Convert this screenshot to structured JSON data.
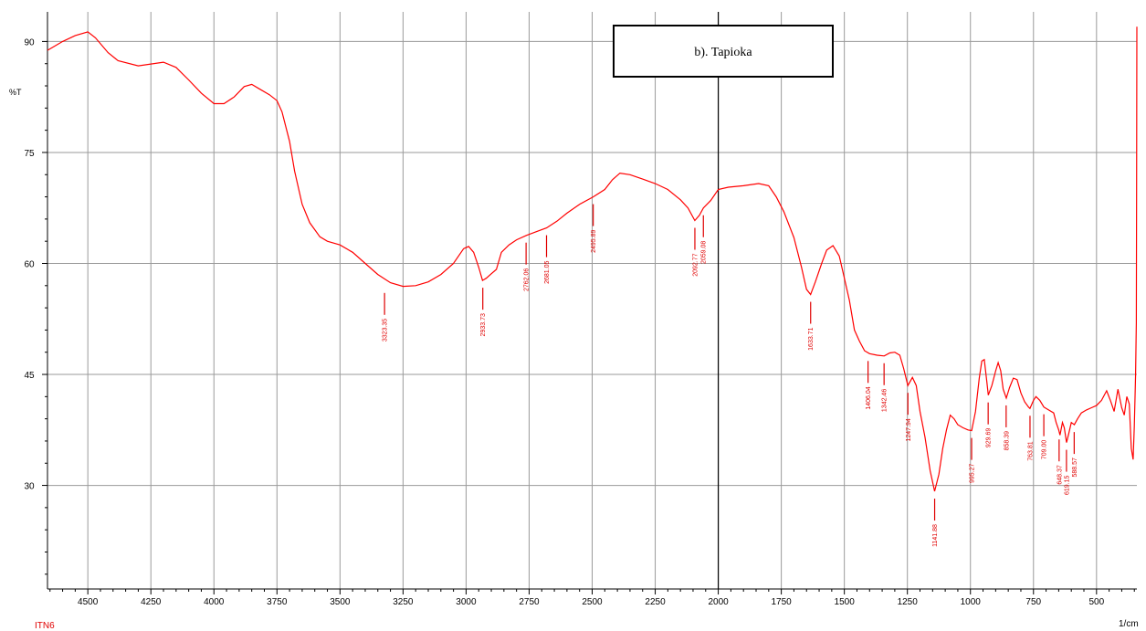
{
  "chart_data": {
    "type": "line",
    "title": "",
    "legend_box": "b). Tapioka",
    "ylabel": "%T",
    "xlabel": "1/cm",
    "sample_label": "ITN6",
    "x_reversed": true,
    "xlim": [
      4660,
      340
    ],
    "ylim": [
      16,
      94
    ],
    "x_ticks": [
      4500,
      4250,
      4000,
      3750,
      3500,
      3250,
      3000,
      2750,
      2500,
      2250,
      2000,
      1750,
      1500,
      1250,
      1000,
      750,
      500
    ],
    "y_ticks": [
      30,
      45,
      60,
      75,
      90
    ],
    "grid": true,
    "series": [
      {
        "color": "#ff0000",
        "points": [
          [
            4660,
            88.8
          ],
          [
            4600,
            90.0
          ],
          [
            4550,
            90.8
          ],
          [
            4500,
            91.3
          ],
          [
            4470,
            90.5
          ],
          [
            4420,
            88.5
          ],
          [
            4380,
            87.4
          ],
          [
            4300,
            86.7
          ],
          [
            4200,
            87.2
          ],
          [
            4150,
            86.5
          ],
          [
            4100,
            84.8
          ],
          [
            4050,
            83.0
          ],
          [
            4000,
            81.6
          ],
          [
            3960,
            81.6
          ],
          [
            3920,
            82.5
          ],
          [
            3880,
            83.9
          ],
          [
            3850,
            84.2
          ],
          [
            3820,
            83.6
          ],
          [
            3780,
            82.8
          ],
          [
            3750,
            82.0
          ],
          [
            3730,
            80.5
          ],
          [
            3700,
            76.5
          ],
          [
            3680,
            72.5
          ],
          [
            3650,
            68.0
          ],
          [
            3620,
            65.5
          ],
          [
            3580,
            63.6
          ],
          [
            3550,
            63.0
          ],
          [
            3500,
            62.5
          ],
          [
            3450,
            61.5
          ],
          [
            3400,
            60.0
          ],
          [
            3350,
            58.5
          ],
          [
            3300,
            57.4
          ],
          [
            3250,
            56.9
          ],
          [
            3200,
            57.0
          ],
          [
            3150,
            57.5
          ],
          [
            3100,
            58.5
          ],
          [
            3050,
            60.0
          ],
          [
            3010,
            62.0
          ],
          [
            2990,
            62.3
          ],
          [
            2970,
            61.5
          ],
          [
            2950,
            59.5
          ],
          [
            2935,
            57.7
          ],
          [
            2920,
            58.0
          ],
          [
            2900,
            58.6
          ],
          [
            2880,
            59.2
          ],
          [
            2860,
            61.5
          ],
          [
            2830,
            62.5
          ],
          [
            2800,
            63.2
          ],
          [
            2760,
            63.8
          ],
          [
            2720,
            64.3
          ],
          [
            2681,
            64.8
          ],
          [
            2640,
            65.7
          ],
          [
            2600,
            66.8
          ],
          [
            2550,
            68.0
          ],
          [
            2496,
            69.0
          ],
          [
            2450,
            70.0
          ],
          [
            2420,
            71.3
          ],
          [
            2390,
            72.2
          ],
          [
            2350,
            72.0
          ],
          [
            2300,
            71.4
          ],
          [
            2250,
            70.8
          ],
          [
            2200,
            70.0
          ],
          [
            2150,
            68.6
          ],
          [
            2120,
            67.5
          ],
          [
            2093,
            65.8
          ],
          [
            2075,
            66.5
          ],
          [
            2059,
            67.5
          ],
          [
            2030,
            68.5
          ],
          [
            2000,
            70.0
          ],
          [
            1960,
            70.3
          ],
          [
            1900,
            70.5
          ],
          [
            1840,
            70.8
          ],
          [
            1800,
            70.5
          ],
          [
            1770,
            69.0
          ],
          [
            1740,
            67.0
          ],
          [
            1700,
            63.5
          ],
          [
            1670,
            59.5
          ],
          [
            1650,
            56.5
          ],
          [
            1634,
            55.8
          ],
          [
            1615,
            57.5
          ],
          [
            1590,
            60.0
          ],
          [
            1570,
            61.8
          ],
          [
            1545,
            62.4
          ],
          [
            1520,
            61.0
          ],
          [
            1500,
            58.0
          ],
          [
            1480,
            55.0
          ],
          [
            1460,
            51.0
          ],
          [
            1440,
            49.5
          ],
          [
            1420,
            48.2
          ],
          [
            1400,
            47.8
          ],
          [
            1370,
            47.6
          ],
          [
            1342,
            47.5
          ],
          [
            1320,
            47.9
          ],
          [
            1300,
            48.0
          ],
          [
            1280,
            47.6
          ],
          [
            1265,
            45.8
          ],
          [
            1248,
            43.5
          ],
          [
            1230,
            44.6
          ],
          [
            1215,
            43.5
          ],
          [
            1200,
            40.0
          ],
          [
            1180,
            36.5
          ],
          [
            1160,
            32.0
          ],
          [
            1142,
            29.2
          ],
          [
            1125,
            31.5
          ],
          [
            1110,
            35.0
          ],
          [
            1095,
            37.5
          ],
          [
            1080,
            39.5
          ],
          [
            1065,
            39.0
          ],
          [
            1050,
            38.2
          ],
          [
            1030,
            37.8
          ],
          [
            1010,
            37.5
          ],
          [
            995,
            37.4
          ],
          [
            980,
            40.0
          ],
          [
            965,
            44.5
          ],
          [
            955,
            46.8
          ],
          [
            945,
            47.0
          ],
          [
            935,
            44.0
          ],
          [
            929,
            42.2
          ],
          [
            915,
            43.5
          ],
          [
            900,
            45.5
          ],
          [
            890,
            46.6
          ],
          [
            880,
            45.5
          ],
          [
            870,
            43.0
          ],
          [
            858,
            41.8
          ],
          [
            845,
            43.2
          ],
          [
            830,
            44.5
          ],
          [
            815,
            44.3
          ],
          [
            800,
            42.5
          ],
          [
            785,
            41.3
          ],
          [
            770,
            40.6
          ],
          [
            764,
            40.4
          ],
          [
            750,
            41.5
          ],
          [
            740,
            42.0
          ],
          [
            725,
            41.5
          ],
          [
            709,
            40.6
          ],
          [
            690,
            40.2
          ],
          [
            670,
            39.8
          ],
          [
            660,
            38.5
          ],
          [
            650,
            37.5
          ],
          [
            645,
            36.8
          ],
          [
            635,
            38.5
          ],
          [
            628,
            37.8
          ],
          [
            619,
            35.8
          ],
          [
            610,
            37.0
          ],
          [
            600,
            38.5
          ],
          [
            588,
            38.2
          ],
          [
            575,
            39.0
          ],
          [
            560,
            39.8
          ],
          [
            540,
            40.2
          ],
          [
            520,
            40.5
          ],
          [
            500,
            40.8
          ],
          [
            480,
            41.5
          ],
          [
            460,
            42.8
          ],
          [
            445,
            41.5
          ],
          [
            430,
            40.0
          ],
          [
            415,
            43.0
          ],
          [
            400,
            40.5
          ],
          [
            390,
            39.5
          ],
          [
            380,
            42.0
          ],
          [
            370,
            41.0
          ],
          [
            362,
            35.0
          ],
          [
            355,
            33.5
          ],
          [
            350,
            38.0
          ],
          [
            345,
            45.0
          ],
          [
            342,
            52.0
          ],
          [
            341,
            70.0
          ],
          [
            340,
            92.0
          ]
        ]
      }
    ],
    "peaks": [
      {
        "label": "3323.35",
        "x": 3323.35,
        "y": 57.0
      },
      {
        "label": "2933.73",
        "x": 2933.73,
        "y": 57.7
      },
      {
        "label": "2762.06",
        "x": 2762.06,
        "y": 63.8
      },
      {
        "label": "2681.05",
        "x": 2681.05,
        "y": 64.8
      },
      {
        "label": "2495.89",
        "x": 2495.89,
        "y": 69.0
      },
      {
        "label": "2092.77",
        "x": 2092.77,
        "y": 65.8
      },
      {
        "label": "2059.08",
        "x": 2059.08,
        "y": 67.5
      },
      {
        "label": "1633.71",
        "x": 1633.71,
        "y": 55.8
      },
      {
        "label": "1406.04",
        "x": 1406.04,
        "y": 47.8
      },
      {
        "label": "1342.46",
        "x": 1342.46,
        "y": 47.5
      },
      {
        "label": "1247.94",
        "x": 1247.94,
        "y": 43.5
      },
      {
        "label": "1141.88",
        "x": 1141.88,
        "y": 29.2
      },
      {
        "label": "995.27",
        "x": 995.27,
        "y": 37.4
      },
      {
        "label": "929.69",
        "x": 929.69,
        "y": 42.2
      },
      {
        "label": "858.39",
        "x": 858.39,
        "y": 41.8
      },
      {
        "label": "763.81",
        "x": 763.81,
        "y": 40.4
      },
      {
        "label": "709.00",
        "x": 709.0,
        "y": 40.6
      },
      {
        "label": "648.37",
        "x": 648.37,
        "y": 37.2
      },
      {
        "label": "619.15",
        "x": 619.15,
        "y": 35.8
      },
      {
        "label": "588.57",
        "x": 588.57,
        "y": 38.2
      }
    ]
  }
}
